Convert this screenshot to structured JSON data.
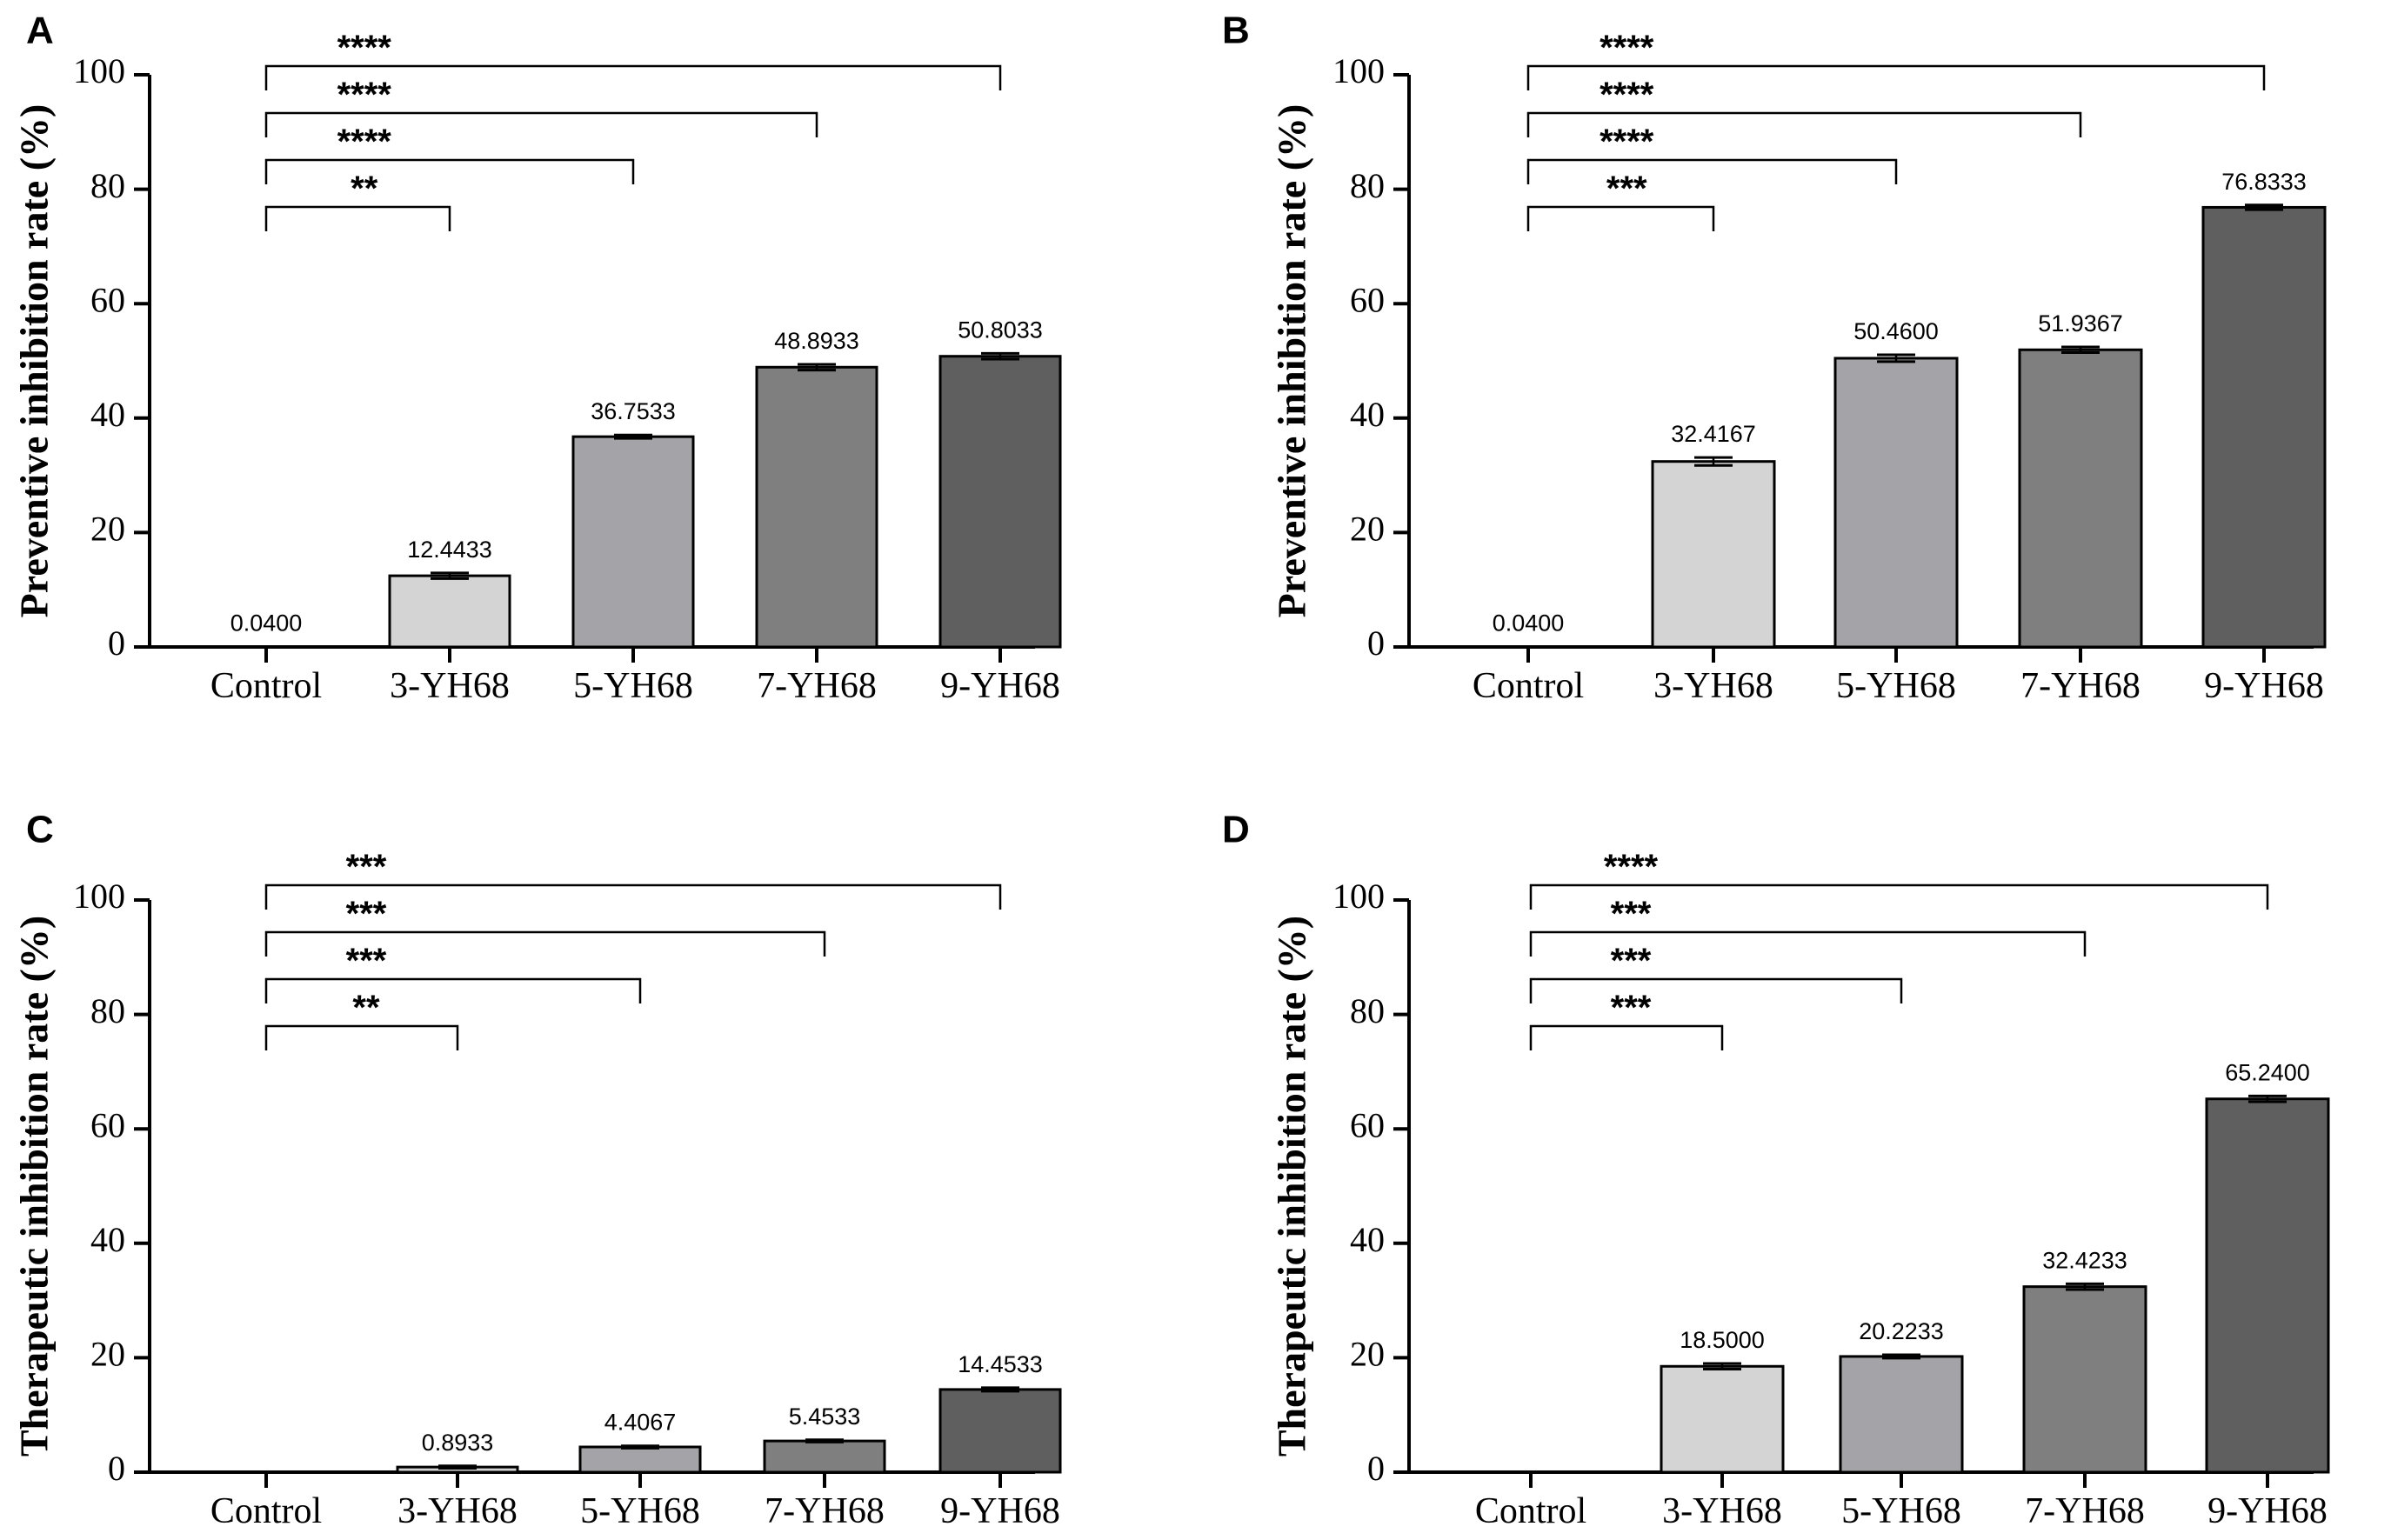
{
  "chart_data": [
    {
      "panel": "A",
      "type": "bar",
      "ylabel": "Preventive inhibition rate (%)",
      "ylim": [
        0,
        100
      ],
      "yticks": [
        "0",
        "20",
        "40",
        "60",
        "80",
        "100"
      ],
      "categories": [
        "Control",
        "3-YH68",
        "5-YH68",
        "7-YH68",
        "9-YH68"
      ],
      "values": [
        0.04,
        12.4433,
        36.7533,
        48.8933,
        50.8033
      ],
      "value_labels": [
        "0.0400",
        "12.4433",
        "36.7533",
        "48.8933",
        "50.8033"
      ],
      "errors": [
        0,
        0.5,
        0.3,
        0.5,
        0.5
      ],
      "colors": [
        "#ffffff",
        "#d4d4d4",
        "#a4a4a8",
        "#7f7f7f",
        "#5f5f5f"
      ],
      "significance": [
        {
          "to": 1,
          "label": "**"
        },
        {
          "to": 2,
          "label": "****"
        },
        {
          "to": 3,
          "label": "****"
        },
        {
          "to": 4,
          "label": "****"
        }
      ]
    },
    {
      "panel": "B",
      "type": "bar",
      "ylabel": "Preventive inhibition rate (%)",
      "ylim": [
        0,
        100
      ],
      "yticks": [
        "0",
        "20",
        "40",
        "60",
        "80",
        "100"
      ],
      "categories": [
        "Control",
        "3-YH68",
        "5-YH68",
        "7-YH68",
        "9-YH68"
      ],
      "values": [
        0.04,
        32.4167,
        50.46,
        51.9367,
        76.8333
      ],
      "value_labels": [
        "0.0400",
        "32.4167",
        "50.4600",
        "51.9367",
        "76.8333"
      ],
      "errors": [
        0,
        0.7,
        0.6,
        0.5,
        0.4
      ],
      "colors": [
        "#ffffff",
        "#d4d4d4",
        "#a4a4a8",
        "#7f7f7f",
        "#5f5f5f"
      ],
      "significance": [
        {
          "to": 1,
          "label": "***"
        },
        {
          "to": 2,
          "label": "****"
        },
        {
          "to": 3,
          "label": "****"
        },
        {
          "to": 4,
          "label": "****"
        }
      ]
    },
    {
      "panel": "C",
      "type": "bar",
      "ylabel": "Therapeutic inhibition rate (%)",
      "ylim": [
        0,
        100
      ],
      "yticks": [
        "0",
        "20",
        "40",
        "60",
        "80",
        "100"
      ],
      "categories": [
        "Control",
        "3-YH68",
        "5-YH68",
        "7-YH68",
        "9-YH68"
      ],
      "values": [
        0,
        0.8933,
        4.4067,
        5.4533,
        14.4533
      ],
      "value_labels": [
        "",
        "0.8933",
        "4.4067",
        "5.4533",
        "14.4533"
      ],
      "errors": [
        0,
        0.2,
        0.2,
        0.2,
        0.3
      ],
      "colors": [
        "#ffffff",
        "#d4d4d4",
        "#a4a4a8",
        "#7f7f7f",
        "#5f5f5f"
      ],
      "significance": [
        {
          "to": 1,
          "label": "**"
        },
        {
          "to": 2,
          "label": "***"
        },
        {
          "to": 3,
          "label": "***"
        },
        {
          "to": 4,
          "label": "***"
        }
      ]
    },
    {
      "panel": "D",
      "type": "bar",
      "ylabel": "Therapeutic inhibition rate (%)",
      "ylim": [
        0,
        100
      ],
      "yticks": [
        "0",
        "20",
        "40",
        "60",
        "80",
        "100"
      ],
      "categories": [
        "Control",
        "3-YH68",
        "5-YH68",
        "7-YH68",
        "9-YH68"
      ],
      "values": [
        0,
        18.5,
        20.2233,
        32.4233,
        65.24
      ],
      "value_labels": [
        "",
        "18.5000",
        "20.2233",
        "32.4233",
        "65.2400"
      ],
      "errors": [
        0,
        0.5,
        0.3,
        0.5,
        0.5
      ],
      "colors": [
        "#ffffff",
        "#d4d4d4",
        "#a4a4a8",
        "#7f7f7f",
        "#5f5f5f"
      ],
      "significance": [
        {
          "to": 1,
          "label": "***"
        },
        {
          "to": 2,
          "label": "***"
        },
        {
          "to": 3,
          "label": "***"
        },
        {
          "to": 4,
          "label": "****"
        }
      ]
    }
  ]
}
